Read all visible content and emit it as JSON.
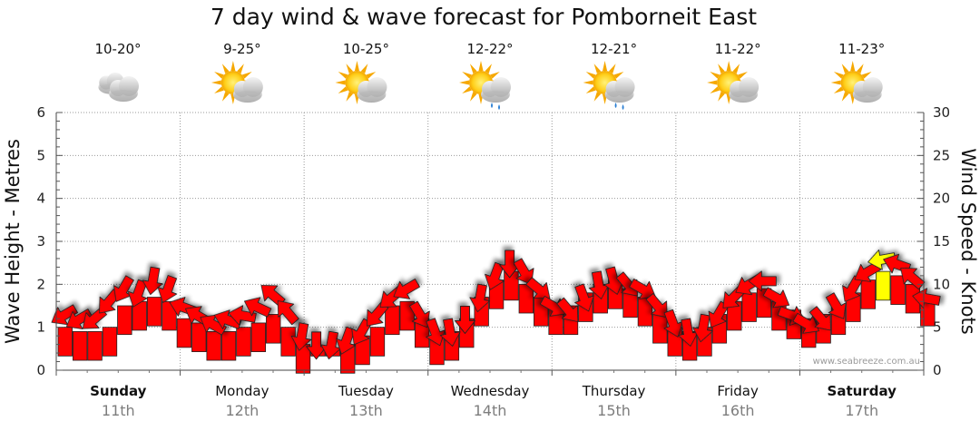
{
  "title": "7 day wind & wave forecast for Pomborneit East",
  "credit": "www.seabreeze.com.au",
  "chart_data": {
    "type": "line",
    "title": "7 day wind & wave forecast for Pomborneit East",
    "ylabel_left": "Wave Height - Metres",
    "ylabel_right": "Wind Speed - Knots",
    "ylim_left": [
      0,
      6
    ],
    "ylim_right": [
      0,
      30
    ],
    "yticks_left": [
      "0",
      "1",
      "2",
      "3",
      "4",
      "5",
      "6"
    ],
    "yticks_right": [
      "0",
      "5",
      "10",
      "15",
      "20",
      "25",
      "30"
    ],
    "grid": true,
    "days": [
      {
        "name": "Sunday",
        "date": "11th",
        "temp": "10-20°",
        "icon": "cloudy-icon",
        "bold": true
      },
      {
        "name": "Monday",
        "date": "12th",
        "temp": "9-25°",
        "icon": "partly-cloudy-icon",
        "bold": false
      },
      {
        "name": "Tuesday",
        "date": "13th",
        "temp": "10-25°",
        "icon": "partly-cloudy-icon",
        "bold": false
      },
      {
        "name": "Wednesday",
        "date": "14th",
        "temp": "12-22°",
        "icon": "showers-icon",
        "bold": false
      },
      {
        "name": "Thursday",
        "date": "15th",
        "temp": "12-21°",
        "icon": "showers-icon",
        "bold": false
      },
      {
        "name": "Friday",
        "date": "16th",
        "temp": "11-22°",
        "icon": "partly-cloudy-icon",
        "bold": false
      },
      {
        "name": "Saturday",
        "date": "17th",
        "temp": "11-23°",
        "icon": "partly-cloudy-icon",
        "bold": true
      }
    ],
    "colors": {
      "wind_normal": "#ff0000",
      "wind_strong": "#ffff00",
      "outline": "#222222",
      "grid": "#9a9a9a"
    },
    "wind_series": {
      "name": "Wind Speed",
      "units": "knots",
      "x_days": [
        0.0,
        0.12,
        0.24,
        0.36,
        0.48,
        0.6,
        0.72,
        0.84,
        0.96,
        1.08,
        1.2,
        1.32,
        1.44,
        1.56,
        1.68,
        1.8,
        1.92,
        2.04,
        2.16,
        2.28,
        2.4,
        2.52,
        2.64,
        2.76,
        2.88,
        3.0,
        3.12,
        3.24,
        3.36,
        3.48,
        3.6,
        3.72,
        3.84,
        3.96,
        4.08,
        4.2,
        4.32,
        4.44,
        4.56,
        4.68,
        4.8,
        4.92,
        5.04,
        5.16,
        5.28,
        5.4,
        5.52,
        5.64,
        5.76,
        5.88,
        6.0,
        6.12,
        6.24,
        6.36,
        6.48,
        6.6,
        6.72,
        6.84,
        6.96
      ],
      "speed": [
        7.0,
        6.5,
        6.5,
        8.5,
        10.0,
        9.5,
        11.0,
        10.0,
        8.0,
        7.0,
        6.0,
        6.5,
        7.0,
        8.0,
        9.5,
        7.5,
        4.5,
        3.5,
        3.5,
        4.0,
        5.0,
        7.0,
        9.0,
        10.0,
        7.0,
        5.0,
        5.0,
        6.5,
        9.0,
        11.5,
        13.0,
        12.0,
        10.0,
        8.0,
        7.5,
        9.0,
        10.5,
        11.0,
        10.5,
        10.0,
        8.0,
        6.0,
        5.0,
        5.5,
        7.0,
        9.0,
        10.5,
        11.0,
        9.0,
        7.0,
        6.0,
        6.5,
        8.0,
        10.0,
        12.0,
        13.5,
        13.0,
        11.5,
        9.0
      ],
      "direction_deg": [
        60,
        60,
        50,
        40,
        30,
        20,
        10,
        20,
        110,
        120,
        120,
        110,
        100,
        115,
        130,
        140,
        10,
        0,
        10,
        20,
        30,
        40,
        50,
        60,
        330,
        340,
        350,
        0,
        10,
        20,
        0,
        330,
        310,
        300,
        320,
        340,
        350,
        345,
        320,
        300,
        320,
        340,
        350,
        10,
        30,
        45,
        60,
        90,
        300,
        290,
        300,
        320,
        330,
        30,
        60,
        80,
        110,
        130,
        100
      ]
    },
    "wave_series": {
      "name": "Wave Height",
      "units": "metres",
      "x_days": [
        0.0,
        0.12,
        0.24,
        0.36,
        0.48,
        0.6,
        0.72,
        0.84,
        0.96,
        1.08,
        1.2,
        1.32,
        1.44,
        1.56,
        1.68,
        1.8,
        1.92,
        2.04,
        2.16,
        2.28,
        2.4,
        2.52,
        2.64,
        2.76,
        2.88,
        3.0,
        3.12,
        3.24,
        3.36,
        3.48,
        3.6,
        3.72,
        3.84,
        3.96,
        4.08,
        4.2,
        4.32,
        4.44,
        4.56,
        4.68,
        4.8,
        4.92,
        5.04,
        5.16,
        5.28,
        5.4,
        5.52,
        5.64,
        5.76,
        5.88,
        6.0,
        6.12,
        6.24,
        6.36,
        6.48,
        6.6,
        6.72,
        6.84,
        6.96
      ],
      "height": [
        1.0,
        0.9,
        0.9,
        1.0,
        1.5,
        1.6,
        1.7,
        1.6,
        1.2,
        1.1,
        0.9,
        0.9,
        1.0,
        1.1,
        1.3,
        1.0,
        0.6,
        0.5,
        0.5,
        0.6,
        0.8,
        1.0,
        1.5,
        1.6,
        1.2,
        0.8,
        0.9,
        1.2,
        1.7,
        2.1,
        2.3,
        2.0,
        1.7,
        1.5,
        1.5,
        1.8,
        2.0,
        2.1,
        1.9,
        1.7,
        1.3,
        1.0,
        0.9,
        1.0,
        1.3,
        1.6,
        1.8,
        1.9,
        1.6,
        1.4,
        1.2,
        1.3,
        1.5,
        1.8,
        2.1,
        2.3,
        2.2,
        2.0,
        1.7
      ]
    }
  }
}
